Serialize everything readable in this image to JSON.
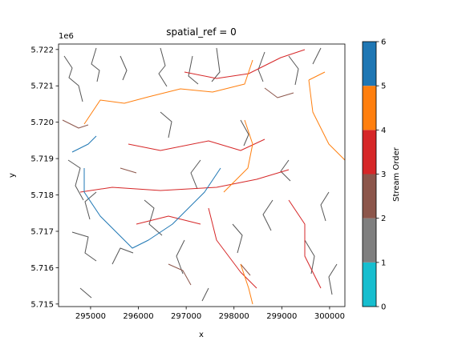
{
  "chart_data": {
    "type": "raster",
    "title": "spatial_ref = 0",
    "xlabel": "x",
    "ylabel": "y",
    "y_offset_label": "1e6",
    "xlim": [
      294330,
      300320
    ],
    "xticks": [
      295000,
      296000,
      297000,
      298000,
      299000,
      300000
    ],
    "ylim": [
      5714930,
      5722150
    ],
    "yticks": [
      {
        "value": 5715000,
        "label": "5.715"
      },
      {
        "value": 5716000,
        "label": "5.716"
      },
      {
        "value": 5717000,
        "label": "5.717"
      },
      {
        "value": 5718000,
        "label": "5.718"
      },
      {
        "value": 5719000,
        "label": "5.719"
      },
      {
        "value": 5720000,
        "label": "5.720"
      },
      {
        "value": 5721000,
        "label": "5.721"
      },
      {
        "value": 5722000,
        "label": "5.722"
      }
    ],
    "colorbar": {
      "label": "Stream Order",
      "lim": [
        0,
        6
      ],
      "ticks": [
        0,
        1,
        2,
        3,
        4,
        5,
        6
      ],
      "colors": [
        "#17becf",
        "#7f7f7f",
        "#8c564b",
        "#d62728",
        "#ff7f0e",
        "#1f77b4"
      ]
    }
  }
}
